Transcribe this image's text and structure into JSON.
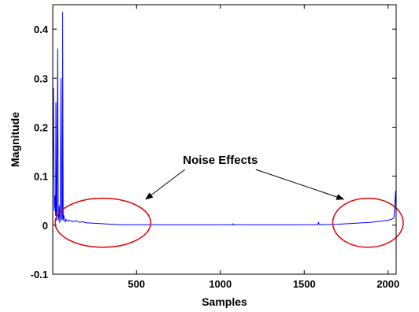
{
  "chart_data": {
    "type": "line",
    "title": "",
    "xlabel": "Samples",
    "ylabel": "Magnitude",
    "xlim": [
      1,
      2048
    ],
    "ylim": [
      -0.1,
      0.45
    ],
    "grid": false,
    "x_ticks": [
      500,
      1000,
      1500,
      2000
    ],
    "y_ticks": [
      -0.1,
      0,
      0.1,
      0.2,
      0.3,
      0.4
    ],
    "x_tick_labels": [
      "500",
      "1000",
      "1500",
      "2000"
    ],
    "y_tick_labels": [
      "-0.1",
      "0",
      "0.1",
      "0.2",
      "0.3",
      "0.4"
    ],
    "series": [
      {
        "color": "#0000ff",
        "x": [
          1,
          5,
          10,
          15,
          18,
          20,
          23,
          26,
          30,
          34,
          38,
          40,
          43,
          46,
          50,
          54,
          58,
          60,
          63,
          66,
          70,
          75,
          80,
          90,
          100,
          120,
          140,
          160,
          180,
          200,
          250,
          300,
          350,
          400,
          450,
          500,
          550,
          600,
          800,
          1000,
          1070,
          1075,
          1080,
          1085,
          1100,
          1300,
          1500,
          1580,
          1585,
          1590,
          1595,
          1600,
          1700,
          1800,
          1900,
          1950,
          2000,
          2020,
          2035,
          2045,
          2048
        ],
        "y": [
          0.07,
          0.28,
          0.03,
          0.06,
          0.02,
          0.25,
          0.01,
          0.03,
          0.36,
          0.01,
          0.02,
          0.04,
          0.005,
          0.02,
          0.3,
          0.01,
          0.015,
          0.435,
          0.01,
          0.02,
          0.015,
          0.006,
          0.012,
          0.008,
          0.01,
          0.007,
          0.009,
          0.006,
          0.007,
          0.005,
          0.004,
          0.003,
          0.002,
          0.001,
          0.001,
          0.001,
          0.001,
          0.001,
          0.001,
          0.001,
          0.001,
          0.003,
          0.0,
          0.001,
          0.001,
          0.001,
          0.001,
          0.001,
          0.006,
          0.001,
          0.002,
          0.001,
          0.002,
          0.004,
          0.006,
          0.008,
          0.01,
          0.012,
          0.015,
          0.07,
          0.02
        ]
      }
    ],
    "annotation": {
      "text": "Noise Effects",
      "highlight_color": "#e00000",
      "regions": [
        {
          "x_center": 300,
          "y_center": 0.005,
          "x_half_width": 285,
          "y_half_height": 0.05
        },
        {
          "x_center": 1880,
          "y_center": 0.005,
          "x_half_width": 210,
          "y_half_height": 0.05
        }
      ],
      "arrows": [
        {
          "to_x": 555,
          "to_y": 0.053
        },
        {
          "to_x": 1735,
          "to_y": 0.053
        }
      ],
      "text_x": 1000,
      "text_y": 0.133
    }
  }
}
